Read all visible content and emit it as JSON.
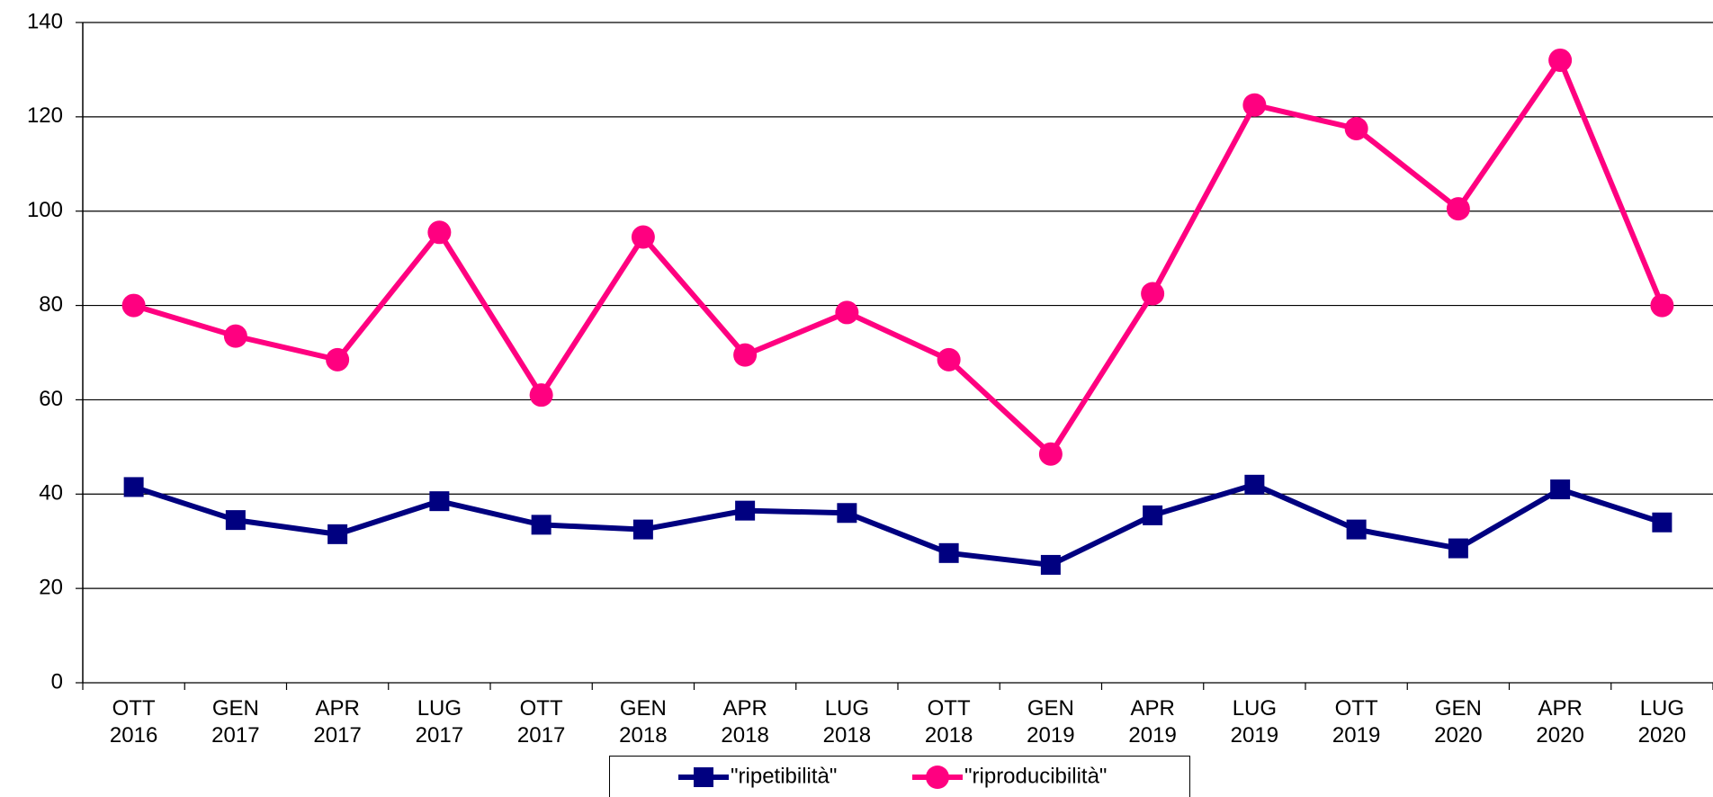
{
  "chart_data": {
    "type": "line",
    "categories": [
      "OTT 2016",
      "GEN 2017",
      "APR 2017",
      "LUG 2017",
      "OTT 2017",
      "GEN 2018",
      "APR 2018",
      "LUG 2018",
      "OTT 2018",
      "GEN 2019",
      "APR 2019",
      "LUG 2019",
      "OTT 2019",
      "GEN 2020",
      "APR 2020",
      "LUG 2020"
    ],
    "series": [
      {
        "name": "\"ripetibilità\"",
        "color": "#000080",
        "marker": "square",
        "values": [
          41.5,
          34.5,
          31.5,
          38.5,
          33.5,
          32.5,
          36.5,
          36,
          27.5,
          25,
          35.5,
          42,
          32.5,
          28.5,
          41,
          34
        ]
      },
      {
        "name": "\"riproducibilità\"",
        "color": "#ff0080",
        "marker": "circle",
        "values": [
          80,
          73.5,
          68.5,
          95.5,
          61,
          94.5,
          69.5,
          78.5,
          68.5,
          48.5,
          82.5,
          122.5,
          117.5,
          100.5,
          132,
          80
        ]
      }
    ],
    "ylim": [
      0,
      140
    ],
    "yticks": [
      0,
      20,
      40,
      60,
      80,
      100,
      120,
      140
    ],
    "grid": true,
    "legend": "bottom"
  }
}
